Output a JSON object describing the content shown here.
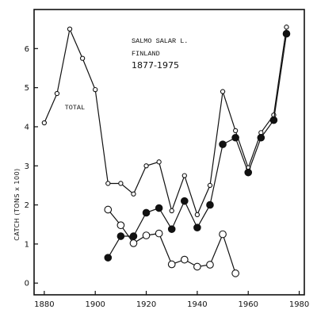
{
  "chart_data": {
    "type": "line",
    "title": "SALMO SALAR L.",
    "subtitle": "FINLAND",
    "period": "1877-1975",
    "ylabel": "CATCH (TONS x 100)",
    "xlabel": "",
    "xlim": [
      1876,
      1982
    ],
    "ylim": [
      -0.3,
      7.0
    ],
    "xticks": [
      1880,
      1900,
      1920,
      1940,
      1960,
      1980
    ],
    "yticks": [
      0,
      1,
      2,
      3,
      4,
      5,
      6
    ],
    "grid": false,
    "annotations": [
      {
        "text": "TOTAL",
        "x": 1888,
        "y": 4.45
      }
    ],
    "series": [
      {
        "marker": "small-open",
        "x": [
          1880,
          1885,
          1890,
          1895,
          1900,
          1905,
          1910,
          1915,
          1920,
          1925,
          1930,
          1935,
          1940,
          1945,
          1950,
          1955,
          1960,
          1965,
          1970,
          1975
        ],
        "values": [
          4.1,
          4.85,
          6.5,
          5.75,
          4.95,
          2.55,
          2.55,
          2.28,
          3.0,
          3.1,
          1.85,
          2.75,
          1.75,
          2.5,
          4.9,
          3.9,
          2.95,
          3.85,
          4.3,
          6.55
        ]
      },
      {
        "marker": "filled",
        "x": [
          1905,
          1910,
          1915,
          1920,
          1925,
          1930,
          1935,
          1940,
          1945,
          1950,
          1955,
          1960,
          1965,
          1970,
          1975
        ],
        "values": [
          0.65,
          1.2,
          1.2,
          1.8,
          1.92,
          1.38,
          2.1,
          1.42,
          2.0,
          3.55,
          3.72,
          2.83,
          3.72,
          4.17,
          6.38
        ]
      },
      {
        "marker": "large-open",
        "x": [
          1905,
          1910,
          1915,
          1920,
          1925,
          1930,
          1935,
          1940,
          1945,
          1950,
          1955
        ],
        "values": [
          1.88,
          1.48,
          1.02,
          1.22,
          1.27,
          0.48,
          0.6,
          0.42,
          0.47,
          1.25,
          0.25
        ]
      }
    ]
  }
}
